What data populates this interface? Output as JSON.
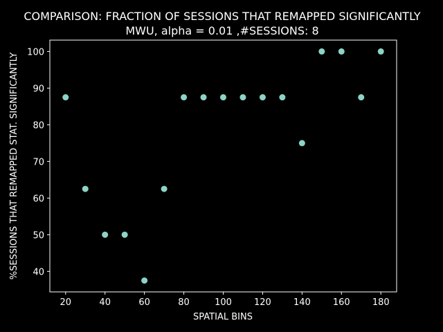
{
  "chart_data": {
    "type": "scatter",
    "title": "COMPARISON: FRACTION OF SESSIONS THAT REMAPPED SIGNIFICANTLY",
    "subtitle": "MWU, alpha = 0.01 ,#SESSIONS: 8",
    "xlabel": "SPATIAL BINS",
    "ylabel": "%SESSIONS THAT REMAPPED STAT. SIGNIFICANTLY",
    "xlim": [
      12.0,
      188.0
    ],
    "ylim": [
      34.4,
      103.1
    ],
    "xticks": [
      20,
      40,
      60,
      80,
      100,
      120,
      140,
      160,
      180
    ],
    "yticks": [
      40,
      50,
      60,
      70,
      80,
      90,
      100
    ],
    "x": [
      20,
      30,
      40,
      50,
      60,
      70,
      80,
      90,
      100,
      110,
      120,
      130,
      140,
      150,
      160,
      170,
      180
    ],
    "y": [
      87.5,
      62.5,
      50.0,
      50.0,
      37.5,
      62.5,
      87.5,
      87.5,
      87.5,
      87.5,
      87.5,
      87.5,
      75.0,
      100.0,
      100.0,
      87.5,
      100.0
    ],
    "grid": false,
    "colors": {
      "background": "#000000",
      "axes": "#ffffff",
      "text": "#ffffff",
      "marker": "#8dd3c7"
    }
  }
}
